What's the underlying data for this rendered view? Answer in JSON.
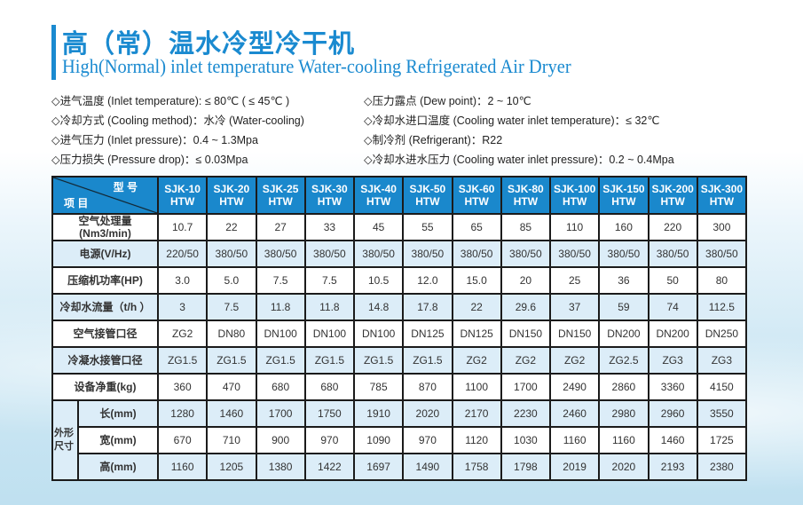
{
  "title_cn": "高（常）温水冷型冷干机",
  "title_en": "High(Normal) inlet temperature Water-cooling Refrigerated Air Dryer",
  "specs_left": [
    "◇进气温度 (Inlet temperature): ≤ 80℃ ( ≤ 45℃ )",
    "◇冷却方式 (Cooling method)：水冷 (Water-cooling)",
    "◇进气压力 (Inlet pressure)：0.4 ~ 1.3Mpa",
    "◇压力损失 (Pressure drop)：≤ 0.03Mpa"
  ],
  "specs_right": [
    "◇压力露点 (Dew point)：2 ~ 10℃",
    "◇冷却水进口温度 (Cooling water inlet temperature)：≤ 32℃",
    "◇制冷剂 (Refrigerant)：R22",
    "◇冷却水进水压力 (Cooling water inlet pressure)：0.2 ~ 0.4Mpa"
  ],
  "table": {
    "corner_model": "型 号",
    "corner_item": "项 目",
    "models": [
      [
        "SJK-10",
        "HTW"
      ],
      [
        "SJK-20",
        "HTW"
      ],
      [
        "SJK-25",
        "HTW"
      ],
      [
        "SJK-30",
        "HTW"
      ],
      [
        "SJK-40",
        "HTW"
      ],
      [
        "SJK-50",
        "HTW"
      ],
      [
        "SJK-60",
        "HTW"
      ],
      [
        "SJK-80",
        "HTW"
      ],
      [
        "SJK-100",
        "HTW"
      ],
      [
        "SJK-150",
        "HTW"
      ],
      [
        "SJK-200",
        "HTW"
      ],
      [
        "SJK-300",
        "HTW"
      ]
    ],
    "dim_group": "外形尺寸",
    "rows": [
      {
        "label": "空气处理量\n(Nm3/min)",
        "values": [
          "10.7",
          "22",
          "27",
          "33",
          "45",
          "55",
          "65",
          "85",
          "110",
          "160",
          "220",
          "300"
        ]
      },
      {
        "label": "电源(V/Hz)",
        "values": [
          "220/50",
          "380/50",
          "380/50",
          "380/50",
          "380/50",
          "380/50",
          "380/50",
          "380/50",
          "380/50",
          "380/50",
          "380/50",
          "380/50"
        ]
      },
      {
        "label": "压缩机功率(HP)",
        "values": [
          "3.0",
          "5.0",
          "7.5",
          "7.5",
          "10.5",
          "12.0",
          "15.0",
          "20",
          "25",
          "36",
          "50",
          "80"
        ]
      },
      {
        "label": "冷却水流量（t/h ）",
        "values": [
          "3",
          "7.5",
          "11.8",
          "11.8",
          "14.8",
          "17.8",
          "22",
          "29.6",
          "37",
          "59",
          "74",
          "112.5"
        ]
      },
      {
        "label": "空气接管口径",
        "values": [
          "ZG2",
          "DN80",
          "DN100",
          "DN100",
          "DN100",
          "DN125",
          "DN125",
          "DN150",
          "DN150",
          "DN200",
          "DN200",
          "DN250"
        ]
      },
      {
        "label": "冷凝水接管口径",
        "values": [
          "ZG1.5",
          "ZG1.5",
          "ZG1.5",
          "ZG1.5",
          "ZG1.5",
          "ZG1.5",
          "ZG2",
          "ZG2",
          "ZG2",
          "ZG2.5",
          "ZG3",
          "ZG3"
        ]
      },
      {
        "label": "设备净重(kg)",
        "values": [
          "360",
          "470",
          "680",
          "680",
          "785",
          "870",
          "1100",
          "1700",
          "2490",
          "2860",
          "3360",
          "4150"
        ]
      },
      {
        "label": "长(mm)",
        "values": [
          "1280",
          "1460",
          "1700",
          "1750",
          "1910",
          "2020",
          "2170",
          "2230",
          "2460",
          "2980",
          "2960",
          "3550"
        ]
      },
      {
        "label": "宽(mm)",
        "values": [
          "670",
          "710",
          "900",
          "970",
          "1090",
          "970",
          "1120",
          "1030",
          "1160",
          "1160",
          "1460",
          "1725"
        ]
      },
      {
        "label": "高(mm)",
        "values": [
          "1160",
          "1205",
          "1380",
          "1422",
          "1697",
          "1490",
          "1758",
          "1798",
          "2019",
          "2020",
          "2193",
          "2380"
        ]
      }
    ]
  },
  "colors": {
    "accent": "#1a8ad0",
    "header": "#1a88cc",
    "alt_row": "#dcedf8"
  }
}
